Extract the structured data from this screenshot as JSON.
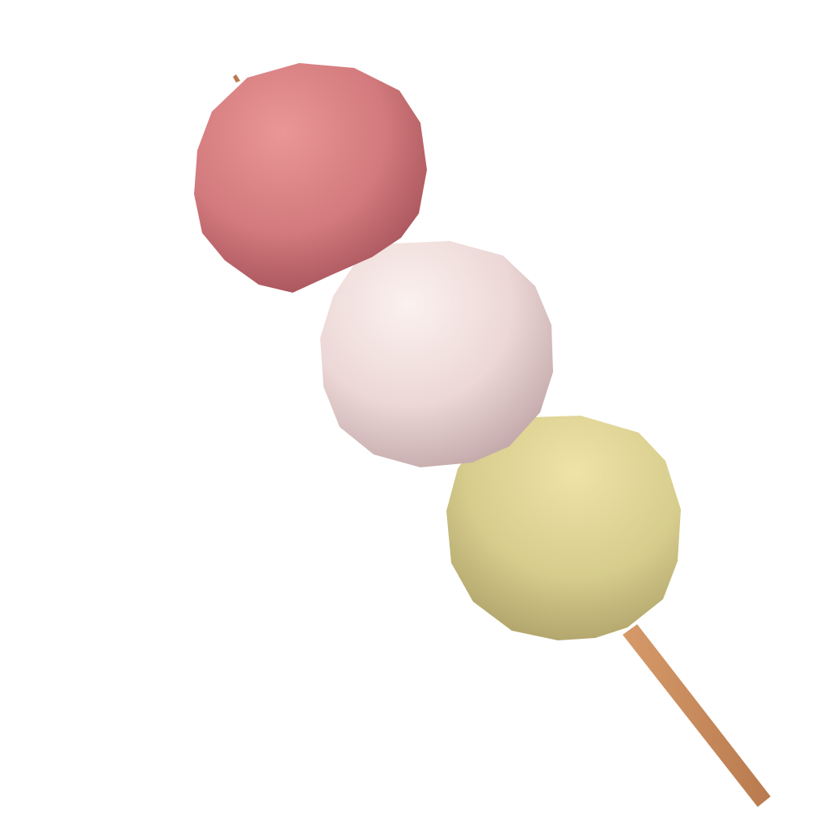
{
  "scene": {
    "subject": "dango-skewer-icon",
    "background_color": "#ffffff",
    "skewer_color": "#d69a6a",
    "skewer_shadow_color": "#b87a4e",
    "balls": [
      {
        "name": "pink-dango",
        "light": "#ea9696",
        "mid": "#d27a7d",
        "dark": "#9c4a52"
      },
      {
        "name": "white-dango",
        "light": "#fbf1ef",
        "mid": "#ecd8d6",
        "dark": "#bfa3a5"
      },
      {
        "name": "green-dango",
        "light": "#efe3a8",
        "mid": "#d6cc8c",
        "dark": "#a79a63"
      }
    ]
  }
}
